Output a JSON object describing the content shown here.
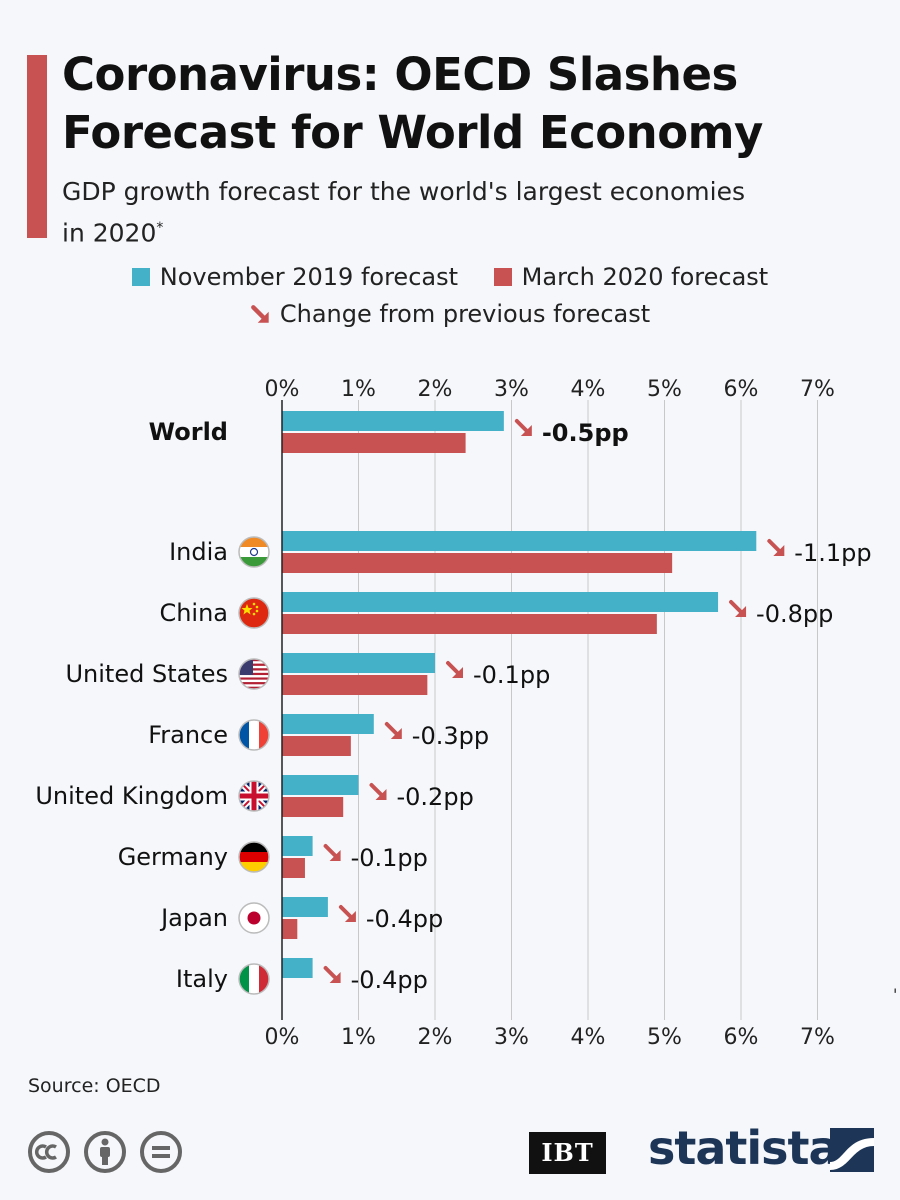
{
  "title": "Coronavirus: OECD Slashes Forecast for World Economy",
  "subtitle": "GDP growth forecast for the world's largest economies in 2020",
  "subtitle_mark": "*",
  "legend": {
    "nov": "November 2019 forecast",
    "mar": "March 2020 forecast",
    "change": "Change from previous forecast"
  },
  "source": "Source: OECD",
  "publisher": "IBT",
  "brand": "statista",
  "corner_mark": "'",
  "colors": {
    "nov": "#45b1c9",
    "mar": "#c85252",
    "accent": "#c85252",
    "grid": "#c8c8c8",
    "brand": "#1d3557"
  },
  "chart_data": {
    "type": "bar",
    "orientation": "horizontal",
    "categories": [
      "World",
      "India",
      "China",
      "United States",
      "France",
      "United Kingdom",
      "Germany",
      "Japan",
      "Italy"
    ],
    "series": [
      {
        "name": "November 2019 forecast",
        "values": [
          2.9,
          6.2,
          5.7,
          2.0,
          1.2,
          1.0,
          0.4,
          0.6,
          0.4
        ]
      },
      {
        "name": "March 2020 forecast",
        "values": [
          2.4,
          5.1,
          4.9,
          1.9,
          0.9,
          0.8,
          0.3,
          0.2,
          0.0
        ]
      }
    ],
    "changes": [
      "-0.5pp",
      "-1.1pp",
      "-0.8pp",
      "-0.1pp",
      "-0.3pp",
      "-0.2pp",
      "-0.1pp",
      "-0.4pp",
      "-0.4pp"
    ],
    "flags": [
      null,
      "india",
      "china",
      "usa",
      "france",
      "uk",
      "germany",
      "japan",
      "italy"
    ],
    "xlim": [
      0,
      7
    ],
    "ticks": [
      "0%",
      "1%",
      "2%",
      "3%",
      "4%",
      "5%",
      "6%",
      "7%"
    ],
    "grid": true,
    "legend_position": "top-center"
  }
}
